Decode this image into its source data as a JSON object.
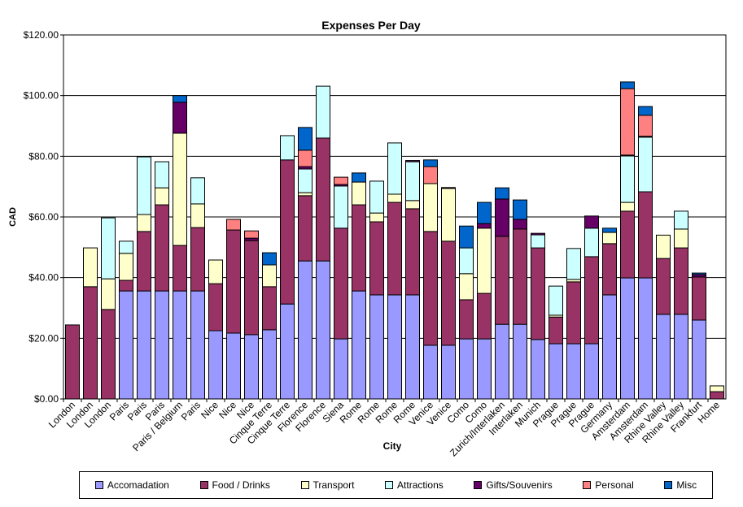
{
  "chart_data": {
    "type": "bar",
    "stacked": true,
    "title": "Expenses Per Day",
    "xlabel": "City",
    "ylabel": "CAD",
    "ylim": [
      0,
      120
    ],
    "yticks": [
      "$0.00",
      "$20.00",
      "$40.00",
      "$60.00",
      "$80.00",
      "$100.00",
      "$120.00"
    ],
    "grid": true,
    "legend_position": "bottom",
    "categories": [
      "London",
      "London",
      "London",
      "Paris",
      "Paris",
      "Paris",
      "Paris / Belgium",
      "Paris",
      "Nice",
      "Nice",
      "Nice",
      "Cinque Terre",
      "Cinque Terre",
      "Florence",
      "Florence",
      "Siena",
      "Rome",
      "Rome",
      "Rome",
      "Rome",
      "Venice",
      "Venice",
      "Como",
      "Como",
      "Zurich/Interlaken",
      "Interlaken",
      "Munich",
      "Prague",
      "Prague",
      "Prague",
      "Germany",
      "Amsterdam",
      "Amsterdam",
      "Rhine Valley",
      "Rhine Valley",
      "Frankfurt",
      "Home"
    ],
    "series": [
      {
        "name": "Accomadation",
        "color": "#9999ff",
        "values": [
          0,
          0,
          0,
          35.6,
          35.6,
          35.6,
          35.6,
          35.6,
          22.5,
          21.7,
          21.2,
          22.8,
          31.3,
          45.5,
          45.5,
          19.8,
          35.6,
          34.3,
          34.3,
          34.3,
          17.7,
          17.7,
          19.8,
          19.8,
          24.6,
          24.6,
          19.6,
          18.2,
          18.2,
          18.2,
          34.3,
          39.9,
          39.9,
          27.9,
          27.9,
          26,
          0
        ]
      },
      {
        "name": "Food / Drinks",
        "color": "#993366",
        "values": [
          24.4,
          37,
          29.5,
          3.5,
          19.6,
          28.4,
          15,
          20.9,
          15.5,
          34,
          31,
          14.2,
          47.5,
          21.5,
          40.5,
          36.5,
          28.4,
          24.1,
          30.5,
          28.4,
          37.5,
          34.3,
          12.9,
          15,
          29,
          31.4,
          30.2,
          8.8,
          20.4,
          28.7,
          16.9,
          22,
          28.4,
          18.4,
          21.9,
          14.2,
          2.4
        ]
      },
      {
        "name": "Transport",
        "color": "#ffffcc",
        "values": [
          0,
          12.8,
          10.1,
          8.9,
          5.6,
          5.6,
          37,
          7.8,
          7.8,
          0,
          0,
          7.2,
          0,
          1,
          0,
          0,
          7.5,
          2.9,
          2.7,
          2.7,
          15.8,
          17.4,
          8.6,
          21.5,
          0,
          0,
          0,
          0.6,
          0.8,
          0,
          3.7,
          2.9,
          0,
          7.7,
          6.2,
          0,
          1.9
        ]
      },
      {
        "name": "Attractions",
        "color": "#ccffff",
        "values": [
          0,
          0,
          20.1,
          4,
          19,
          8.6,
          0,
          8.6,
          0,
          0,
          0,
          0,
          8,
          7.8,
          17.1,
          13.9,
          0,
          10.5,
          16.9,
          12.8,
          0,
          0,
          8.5,
          0,
          0,
          0,
          4.3,
          9.6,
          10.2,
          9.4,
          0,
          15.3,
          18,
          0,
          5.9,
          0,
          0
        ]
      },
      {
        "name": "Gifts/Souvenirs",
        "color": "#660066",
        "values": [
          0,
          0,
          0,
          0,
          0,
          0,
          10.2,
          0,
          0,
          0,
          0.8,
          0,
          0,
          0.8,
          0,
          0.5,
          0,
          0,
          0,
          0.4,
          0,
          0.3,
          0,
          1.5,
          12.3,
          3.2,
          0.5,
          0,
          0,
          4,
          0,
          0.3,
          0.3,
          0,
          0,
          0.8,
          0
        ]
      },
      {
        "name": "Personal",
        "color": "#ff8080",
        "values": [
          0,
          0,
          0,
          0,
          0,
          0,
          0,
          0,
          0,
          3.5,
          2.4,
          0,
          0,
          5.4,
          0,
          2.4,
          0,
          0,
          0,
          0,
          5.6,
          0,
          0,
          0,
          0,
          0,
          0,
          0,
          0,
          0,
          0,
          21.9,
          6.9,
          0,
          0,
          0,
          0
        ]
      },
      {
        "name": "Misc",
        "color": "#0066cc",
        "values": [
          0,
          0,
          0,
          0,
          0,
          0,
          2.2,
          0,
          0,
          0,
          0,
          4,
          0,
          7.5,
          0,
          0,
          3,
          0,
          0,
          0,
          2.2,
          0,
          7.2,
          7,
          3.7,
          6.4,
          0,
          0,
          0,
          0,
          1.4,
          2.2,
          2.9,
          0,
          0,
          0.5,
          0
        ]
      }
    ]
  }
}
